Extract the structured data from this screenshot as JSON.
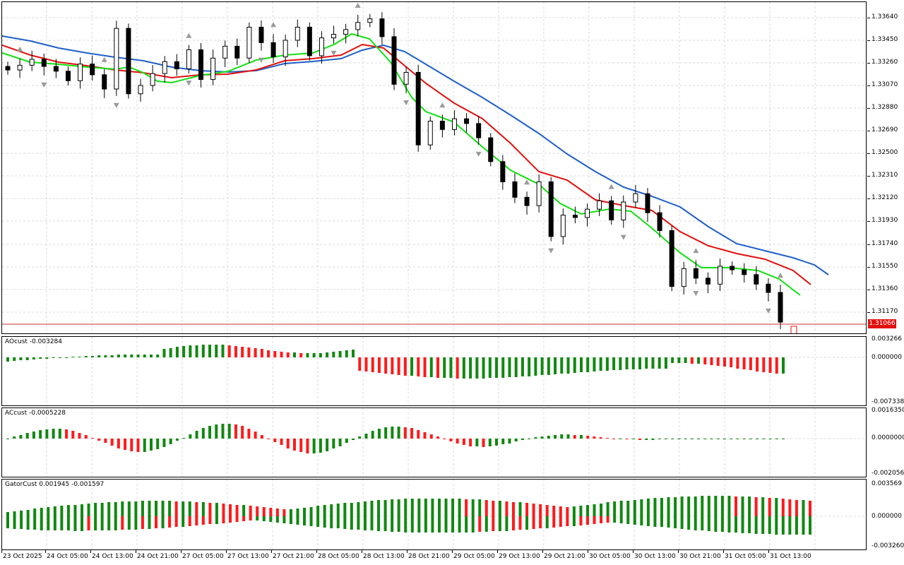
{
  "price_axis": [
    "1.33640",
    "1.33450",
    "1.33260",
    "1.33070",
    "1.32880",
    "1.32690",
    "1.32500",
    "1.32310",
    "1.32120",
    "1.31930",
    "1.31740",
    "1.31550",
    "1.31360",
    "1.31170"
  ],
  "current_price": "1.31066",
  "panes": {
    "ao": {
      "label": "AOcust -0.003284",
      "top": "0.003266",
      "mid": "0.000000",
      "bottom": "-0.007338"
    },
    "ac": {
      "label": "ACcust -0.0005228",
      "top": "0.0016350",
      "mid": "0.0000000",
      "bottom": "-0.0020568"
    },
    "gator": {
      "label": "GatorCust 0.001945 -0.001597",
      "top": "0.003569",
      "mid": "0.000000",
      "bottom": "-0.003260"
    }
  },
  "time_axis": [
    "23 Oct 2025",
    "24 Oct 05:00",
    "24 Oct 13:00",
    "24 Oct 21:00",
    "27 Oct 05:00",
    "27 Oct 13:00",
    "27 Oct 21:00",
    "28 Oct 05:00",
    "28 Oct 13:00",
    "28 Oct 21:00",
    "29 Oct 05:00",
    "29 Oct 13:00",
    "29 Oct 21:00",
    "30 Oct 05:00",
    "30 Oct 13:00",
    "30 Oct 21:00",
    "31 Oct 05:00",
    "31 Oct 13:00"
  ],
  "colors": {
    "jaw": "#1f5fc8",
    "teeth": "#e2100f",
    "lips": "#11e011",
    "up": "#118811",
    "down": "#ff1a1a",
    "price_line": "#c83030"
  },
  "chart_data": {
    "type": "candlestick",
    "symbol_timeframe_hidden": true,
    "ylim": [
      1.3098,
      1.3378
    ],
    "candles_close": [
      1.332,
      1.3324,
      1.3329,
      1.3323,
      1.3319,
      1.3311,
      1.3325,
      1.3316,
      1.3304,
      1.3355,
      1.33,
      1.3307,
      1.3317,
      1.3327,
      1.3321,
      1.3337,
      1.3312,
      1.333,
      1.334,
      1.333,
      1.3356,
      1.3343,
      1.3331,
      1.3345,
      1.3356,
      1.3332,
      1.3347,
      1.335,
      1.3354,
      1.336,
      1.3363,
      1.3348,
      1.3308,
      1.3318,
      1.3257,
      1.3277,
      1.327,
      1.3279,
      1.3275,
      1.3263,
      1.3243,
      1.3226,
      1.3213,
      1.3206,
      1.3226,
      1.318,
      1.3198,
      1.3196,
      1.3203,
      1.321,
      1.3194,
      1.3209,
      1.3216,
      1.32,
      1.3185,
      1.3138,
      1.3153,
      1.3145,
      1.314,
      1.3155,
      1.3152,
      1.3148,
      1.314,
      1.3133,
      1.3108
    ]
  }
}
